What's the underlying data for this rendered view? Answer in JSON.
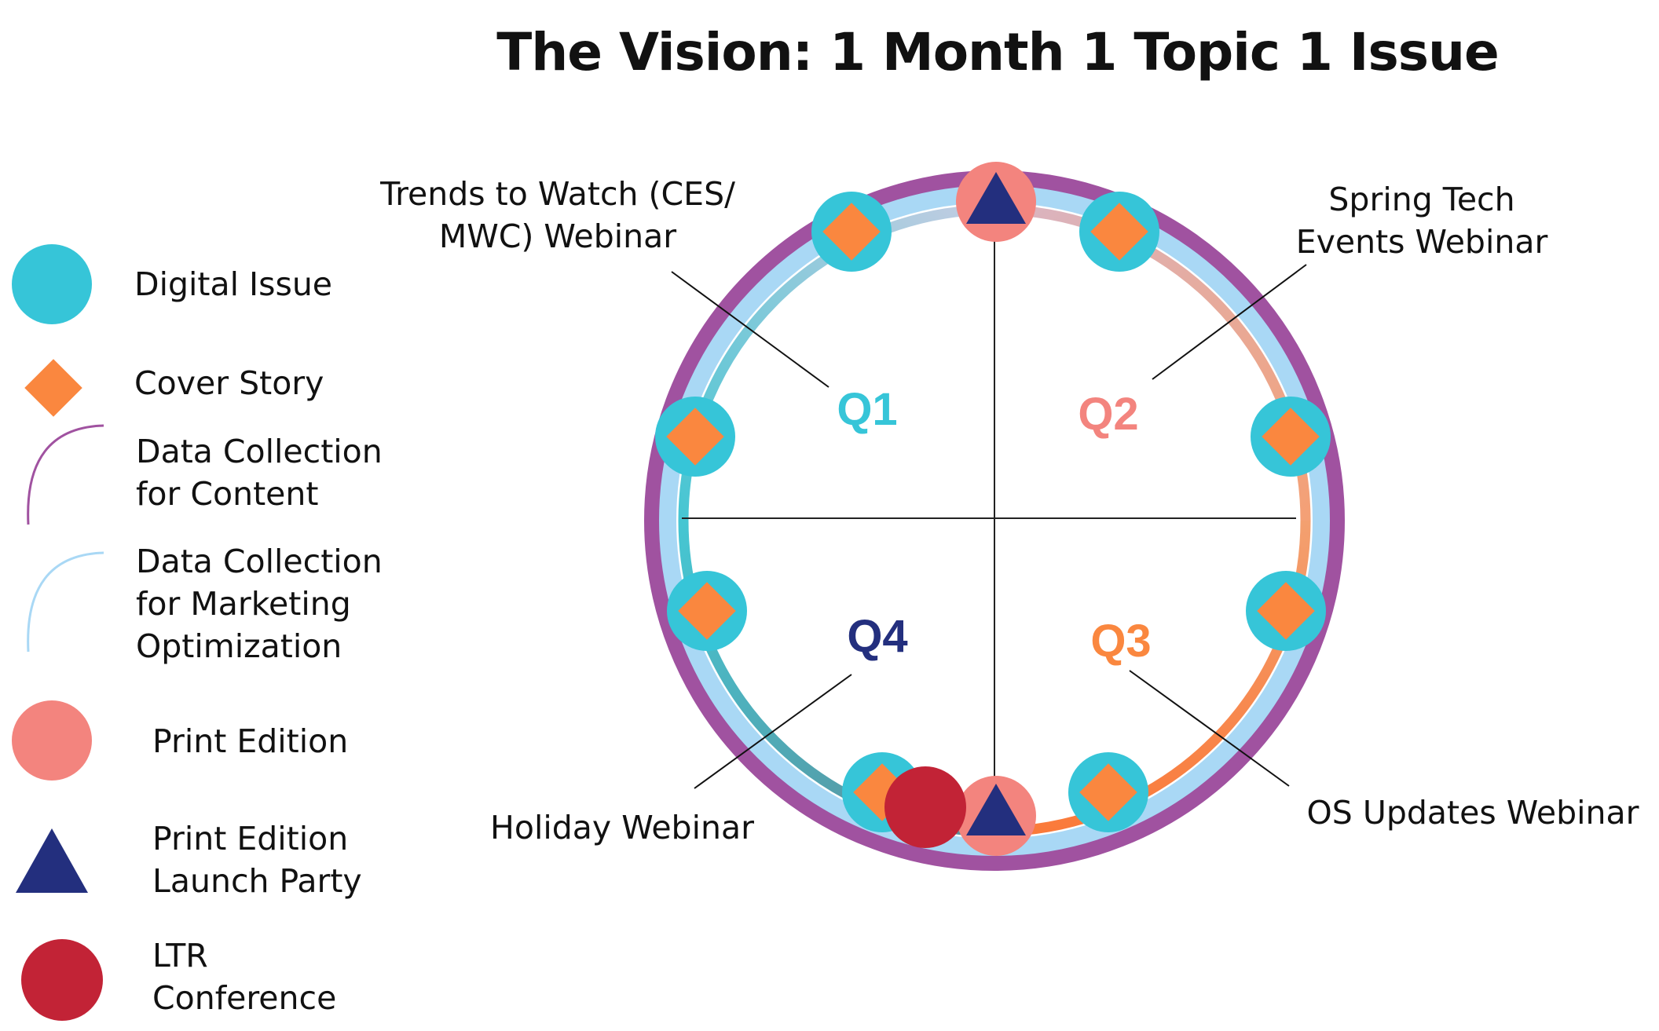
{
  "title": "The Vision: 1 Month 1 Topic 1 Issue",
  "legend": [
    {
      "key": "digital",
      "label": "Digital Issue",
      "icon": "circle",
      "color": "#36C5D8"
    },
    {
      "key": "cover",
      "label": "Cover Story",
      "icon": "diamond",
      "color": "#FA873F"
    },
    {
      "key": "data_content",
      "label": "Data Collection\nfor Content",
      "icon": "arc",
      "color": "#A052A0"
    },
    {
      "key": "data_marketing",
      "label": "Data Collection\nfor Marketing\nOptimization",
      "icon": "arc",
      "color": "#A9D8F5"
    },
    {
      "key": "print",
      "label": "Print Edition",
      "icon": "circle",
      "color": "#F3847E"
    },
    {
      "key": "launch",
      "label": "Print Edition\nLaunch Party",
      "icon": "triangle",
      "color": "#232F7E"
    },
    {
      "key": "ltr",
      "label": "LTR\nConference",
      "icon": "circle",
      "color": "#C22336"
    }
  ],
  "quarters": [
    {
      "label": "Q1",
      "color": "#36C5D8"
    },
    {
      "label": "Q2",
      "color": "#F3847E"
    },
    {
      "label": "Q3",
      "color": "#FA873F"
    },
    {
      "label": "Q4",
      "color": "#232F7E"
    }
  ],
  "callouts": {
    "q1": "Trends to Watch (CES/\nMWC) Webinar",
    "q2": "Spring Tech\nEvents Webinar",
    "q3": "OS Updates Webinar",
    "q4": "Holiday Webinar"
  },
  "colors": {
    "outer_ring": "#A052A0",
    "light_ring": "#A9D8F5",
    "digital": "#36C5D8",
    "cover": "#FA873F",
    "print": "#F3847E",
    "launch": "#232F7E",
    "ltr": "#C22336"
  }
}
